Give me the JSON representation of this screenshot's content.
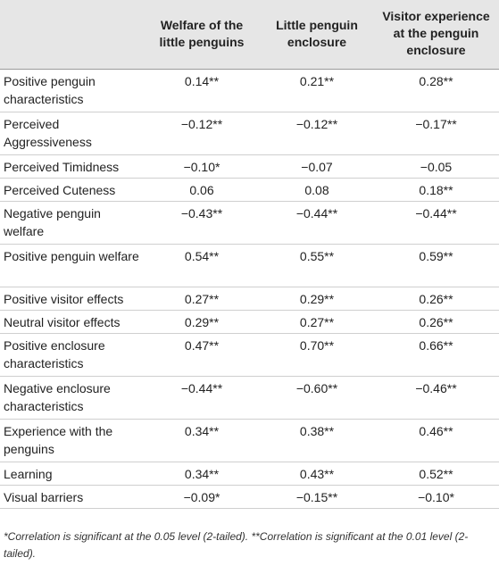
{
  "table": {
    "headers": [
      "",
      "Welfare of the little penguins",
      "Little penguin enclosure",
      "Visitor experience at the penguin enclosure"
    ],
    "rows": [
      {
        "label": "Positive penguin characteristics",
        "v1": "0.14**",
        "v2": "0.21**",
        "v3": "0.28**",
        "lines": 2
      },
      {
        "label": "Perceived Aggressiveness",
        "v1": "−0.12**",
        "v2": "−0.12**",
        "v3": "−0.17**",
        "lines": 2
      },
      {
        "label": "Perceived Timidness",
        "v1": "−0.10*",
        "v2": "−0.07",
        "v3": "−0.05",
        "lines": 1
      },
      {
        "label": "Perceived Cuteness",
        "v1": "0.06",
        "v2": "0.08",
        "v3": "0.18**",
        "lines": 1
      },
      {
        "label": "Negative penguin welfare",
        "v1": "−0.43**",
        "v2": "−0.44**",
        "v3": "−0.44**",
        "lines": 2
      },
      {
        "label": "Positive penguin welfare",
        "v1": "0.54**",
        "v2": "0.55**",
        "v3": "0.59**",
        "lines": 2
      },
      {
        "label": "Positive visitor effects",
        "v1": "0.27**",
        "v2": "0.29**",
        "v3": "0.26**",
        "lines": 1
      },
      {
        "label": "Neutral visitor effects",
        "v1": "0.29**",
        "v2": "0.27**",
        "v3": "0.26**",
        "lines": 1
      },
      {
        "label": "Positive enclosure characteristics",
        "v1": "0.47**",
        "v2": "0.70**",
        "v3": "0.66**",
        "lines": 2
      },
      {
        "label": "Negative enclosure characteristics",
        "v1": "−0.44**",
        "v2": "−0.60**",
        "v3": "−0.46**",
        "lines": 2
      },
      {
        "label": "Experience with the penguins",
        "v1": "0.34**",
        "v2": "0.38**",
        "v3": "0.46**",
        "lines": 2
      },
      {
        "label": "Learning",
        "v1": "0.34**",
        "v2": "0.43**",
        "v3": "0.52**",
        "lines": 1
      },
      {
        "label": "Visual barriers",
        "v1": "−0.09*",
        "v2": "−0.15**",
        "v3": "−0.10*",
        "lines": 1
      }
    ]
  },
  "footnote": "*Correlation is significant at the 0.05 level (2-tailed). **Correlation is significant at the 0.01 level (2-tailed)."
}
